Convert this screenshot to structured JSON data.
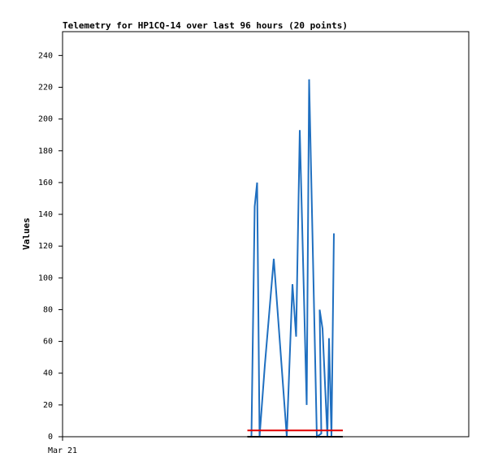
{
  "chart_data": {
    "type": "line",
    "title": "Telemetry for HP1CQ-14 over last 96 hours (20 points)",
    "xlabel": "",
    "ylabel": "Values",
    "x_tick_labels": [
      "Mar 21"
    ],
    "ylim": [
      0,
      255
    ],
    "yticks": [
      0,
      20,
      40,
      60,
      80,
      100,
      120,
      140,
      160,
      180,
      200,
      220,
      240
    ],
    "grid": false,
    "legend": "none",
    "xlim_fraction": [
      0,
      1
    ],
    "colors": {
      "series": "#1f6fc0",
      "threshold": "#e00000",
      "baseline": "#000000",
      "axes": "#000000"
    },
    "series": [
      {
        "color": "#1f6fc0",
        "x": [
          0.465,
          0.473,
          0.479,
          0.485,
          0.498,
          0.52,
          0.552,
          0.566,
          0.575,
          0.584,
          0.601,
          0.607,
          0.626,
          0.637,
          0.633,
          0.64,
          0.652,
          0.656,
          0.662,
          0.668
        ],
        "y": [
          0,
          145,
          160,
          0,
          45,
          112,
          0,
          96,
          63,
          193,
          20,
          225,
          0,
          2,
          80,
          68,
          0,
          62,
          0,
          128
        ]
      },
      {
        "color": "#e00000",
        "x": [
          0.455,
          0.69
        ],
        "y": [
          4,
          4
        ]
      },
      {
        "color": "#000000",
        "x": [
          0.455,
          0.69
        ],
        "y": [
          0,
          0
        ]
      }
    ]
  }
}
